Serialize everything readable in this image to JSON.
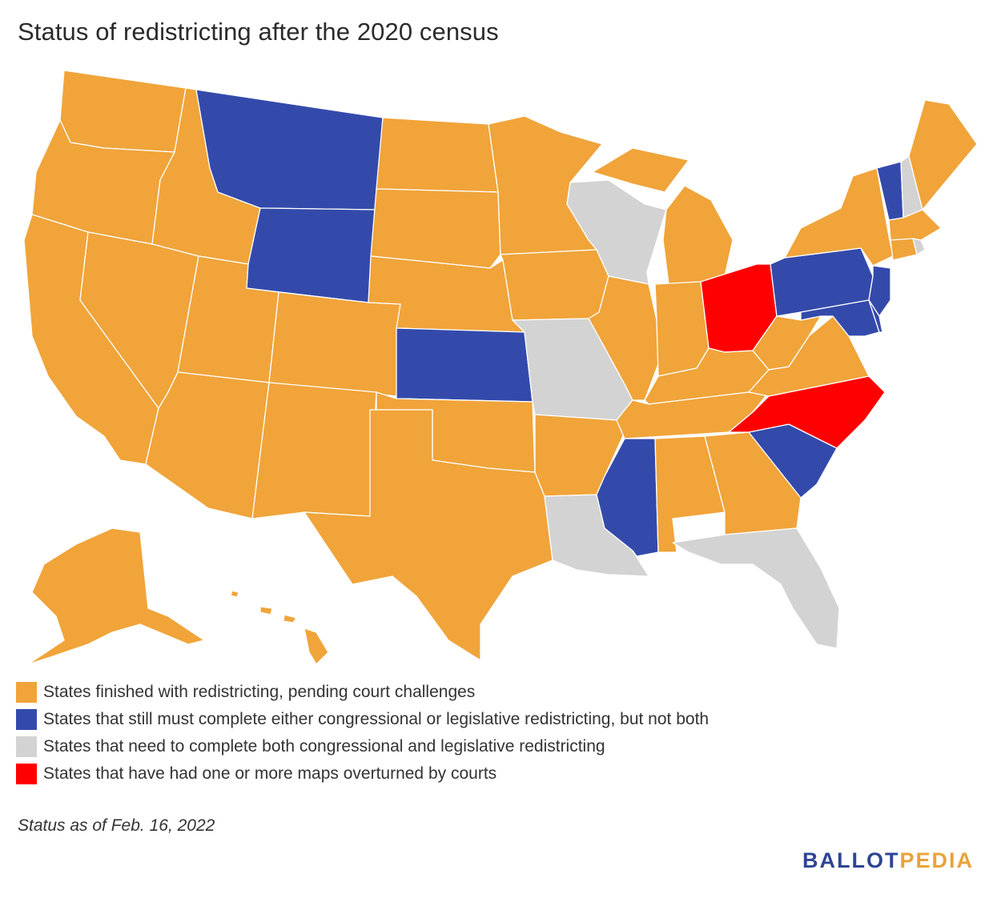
{
  "title": "Status of redistricting after the 2020 census",
  "colors": {
    "finished": "#f0a43a",
    "one_remaining": "#344aab",
    "both_remaining": "#d3d3d3",
    "overturned": "#ff0000",
    "logo_blue": "#2e4594",
    "logo_gold": "#e8a33d"
  },
  "legend": [
    {
      "status": "finished",
      "label": "States finished with redistricting, pending court challenges"
    },
    {
      "status": "one_remaining",
      "label": "States that still must complete either congressional or legislative redistricting, but not both"
    },
    {
      "status": "both_remaining",
      "label": "States that need to complete both congressional and legislative redistricting"
    },
    {
      "status": "overturned",
      "label": "States that have had one or more maps overturned by courts"
    }
  ],
  "states": {
    "MT": "one_remaining",
    "WY": "one_remaining",
    "KS": "one_remaining",
    "VT": "one_remaining",
    "PA": "one_remaining",
    "NJ": "one_remaining",
    "MD": "one_remaining",
    "DE": "one_remaining",
    "SC": "one_remaining",
    "MS": "one_remaining",
    "WI": "both_remaining",
    "MO": "both_remaining",
    "LA": "both_remaining",
    "FL": "both_remaining",
    "NH": "both_remaining",
    "RI": "both_remaining",
    "OH": "overturned",
    "NC": "overturned"
  },
  "note": "Status as of Feb. 16, 2022",
  "logo": {
    "part_a": "BALLOT",
    "part_b": "PEDIA"
  }
}
